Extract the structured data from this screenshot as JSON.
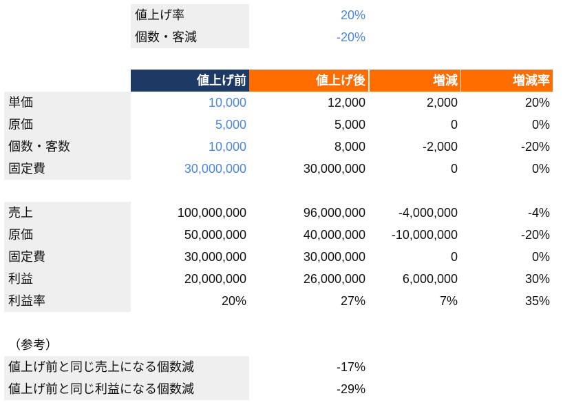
{
  "top": {
    "rows": [
      {
        "label": "値上げ率",
        "value": "20%"
      },
      {
        "label": "個数・客減",
        "value": "-20%"
      }
    ]
  },
  "table": {
    "header": [
      "値上げ前",
      "値上げ後",
      "増減",
      "増減率"
    ],
    "input_rows": [
      [
        "単価",
        "10,000",
        "12,000",
        "2,000",
        "20%"
      ],
      [
        "原価",
        "5,000",
        "5,000",
        "0",
        "0%"
      ],
      [
        "個数・客数",
        "10,000",
        "8,000",
        "-2,000",
        "-20%"
      ],
      [
        "固定費",
        "30,000,000",
        "30,000,000",
        "0",
        "0%"
      ]
    ],
    "result_rows": [
      [
        "売上",
        "100,000,000",
        "96,000,000",
        "-4,000,000",
        "-4%"
      ],
      [
        "原価",
        "50,000,000",
        "40,000,000",
        "-10,000,000",
        "-20%"
      ],
      [
        "固定費",
        "30,000,000",
        "30,000,000",
        "0",
        "0%"
      ],
      [
        "利益",
        "20,000,000",
        "26,000,000",
        "6,000,000",
        "30%"
      ],
      [
        "利益率",
        "20%",
        "27%",
        "7%",
        "35%"
      ]
    ]
  },
  "reference": {
    "title": "（参考）",
    "rows": [
      {
        "label": "値上げ前と同じ売上になる個数減",
        "value": "-17%"
      },
      {
        "label": "値上げ前と同じ利益になる個数減",
        "value": "-29%"
      }
    ]
  }
}
